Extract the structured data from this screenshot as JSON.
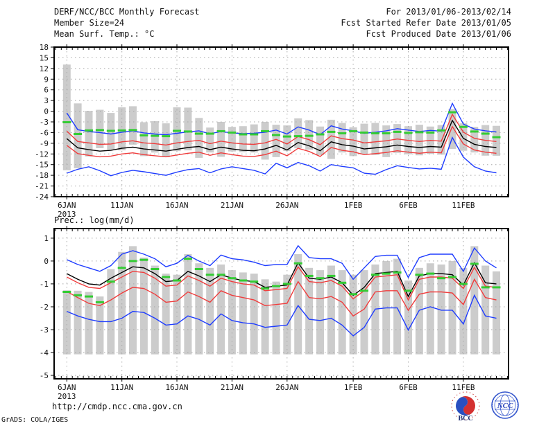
{
  "header": {
    "title": "DERF/NCC/BCC Monthly Forecast",
    "member_size": "Member Size=24",
    "temp_title": "Mean Surf. Temp.: °C",
    "for_range": "For 2013/01/06-2013/02/14",
    "refer_date": "Fcst Started Refer Date 2013/01/05",
    "produced_date": "Fcst Produced Date 2013/01/06"
  },
  "footer": {
    "url": "http://cmdp.ncc.cma.gov.cn",
    "credit": "GrADS: COLA/IGES",
    "logos": [
      {
        "label": "BCC"
      },
      {
        "label": "NCC"
      }
    ]
  },
  "colors": {
    "ensemble_extreme_blue": "#1e3cff",
    "spread_red": "#f03c3c",
    "mean_black": "#000000",
    "obs_green": "#33cc33",
    "bar_gray": "#cccccc",
    "grid": "#a8a8a8"
  },
  "x_axis": {
    "tick_labels": [
      "6JAN",
      "11JAN",
      "16JAN",
      "21JAN",
      "26JAN",
      "1FEB",
      "6FEB",
      "11FEB"
    ],
    "tick_days": [
      0,
      5,
      10,
      15,
      20,
      26,
      31,
      36
    ],
    "year_label": "2013",
    "n_days": 40
  },
  "chart_data": [
    {
      "type": "line",
      "name": "surface-temperature",
      "title": "Mean Surf. Temp.: °C",
      "ylim": [
        -24,
        18
      ],
      "yticks": [
        18,
        15,
        12,
        9,
        6,
        3,
        0,
        -3,
        -6,
        -9,
        -12,
        -15,
        -18,
        -21,
        -24
      ],
      "grid": true,
      "series": [
        {
          "name": "ensemble-max",
          "color": "#1e3cff",
          "values": [
            -0.5,
            -5.2,
            -5.7,
            -6.0,
            -6.4,
            -5.9,
            -5.5,
            -6.1,
            -6.4,
            -6.6,
            -6.2,
            -5.8,
            -5.5,
            -6.3,
            -5.7,
            -6.1,
            -6.3,
            -6.2,
            -5.9,
            -5.3,
            -6.4,
            -4.4,
            -5.3,
            -6.6,
            -4.1,
            -5.0,
            -5.5,
            -6.2,
            -5.9,
            -5.5,
            -4.9,
            -5.3,
            -5.7,
            -5.4,
            -5.6,
            2.2,
            -3.6,
            -5.0,
            -5.5,
            -5.8
          ]
        },
        {
          "name": "upper-spread",
          "color": "#f03c3c",
          "values": [
            -5.6,
            -8.5,
            -8.9,
            -9.3,
            -9.2,
            -8.6,
            -8.3,
            -8.9,
            -9.1,
            -9.5,
            -8.9,
            -8.5,
            -8.2,
            -9.1,
            -8.4,
            -8.9,
            -9.2,
            -9.3,
            -8.9,
            -7.9,
            -9.2,
            -7.1,
            -8.0,
            -9.4,
            -6.9,
            -7.7,
            -8.1,
            -8.9,
            -8.6,
            -8.3,
            -7.8,
            -8.2,
            -8.5,
            -8.2,
            -8.4,
            -0.9,
            -5.9,
            -7.6,
            -8.2,
            -8.5
          ]
        },
        {
          "name": "ensemble-mean",
          "color": "#000000",
          "values": [
            -7.7,
            -10.3,
            -10.8,
            -11.2,
            -11.0,
            -10.4,
            -10.1,
            -10.6,
            -10.9,
            -11.2,
            -10.7,
            -10.2,
            -9.9,
            -10.8,
            -10.1,
            -10.6,
            -11.0,
            -11.1,
            -10.6,
            -9.6,
            -10.9,
            -8.8,
            -9.7,
            -11.1,
            -8.6,
            -9.4,
            -9.8,
            -10.6,
            -10.3,
            -10.0,
            -9.5,
            -9.9,
            -10.2,
            -9.9,
            -10.1,
            -2.6,
            -7.6,
            -9.3,
            -9.9,
            -10.2
          ]
        },
        {
          "name": "lower-spread",
          "color": "#f03c3c",
          "values": [
            -9.6,
            -11.9,
            -12.4,
            -12.8,
            -12.6,
            -12.0,
            -11.7,
            -12.2,
            -12.5,
            -12.8,
            -12.3,
            -11.8,
            -11.5,
            -12.4,
            -11.7,
            -12.2,
            -12.6,
            -12.7,
            -12.2,
            -11.2,
            -12.5,
            -10.4,
            -11.3,
            -12.7,
            -10.2,
            -11.0,
            -11.4,
            -12.2,
            -11.9,
            -11.6,
            -11.1,
            -11.5,
            -11.8,
            -11.5,
            -11.7,
            -4.3,
            -9.2,
            -10.9,
            -11.5,
            -11.8
          ]
        },
        {
          "name": "ensemble-min",
          "color": "#1e3cff",
          "values": [
            -17.4,
            -16.3,
            -15.6,
            -16.7,
            -18.1,
            -17.2,
            -16.6,
            -17.0,
            -17.5,
            -18.0,
            -17.1,
            -16.4,
            -16.1,
            -17.3,
            -16.2,
            -15.6,
            -16.1,
            -16.6,
            -17.6,
            -14.6,
            -15.9,
            -14.4,
            -15.3,
            -16.8,
            -15.0,
            -15.5,
            -15.9,
            -17.4,
            -17.7,
            -16.4,
            -15.3,
            -15.8,
            -16.2,
            -16.0,
            -16.3,
            -7.4,
            -12.9,
            -15.6,
            -16.8,
            -17.3
          ]
        }
      ],
      "obs_dash": {
        "color": "#33cc33",
        "values": [
          -3.1,
          -6.4,
          -5.4,
          -5.3,
          -5.5,
          -5.4,
          -5.3,
          -6.8,
          -6.9,
          -7.0,
          -5.5,
          -5.7,
          -6.3,
          -6.3,
          -5.6,
          -6.0,
          -6.5,
          -6.5,
          -5.6,
          -6.7,
          -7.1,
          -7.0,
          -6.9,
          -6.5,
          -5.8,
          -6.2,
          -5.6,
          -6.0,
          -6.2,
          -6.2,
          -5.8,
          -6.1,
          -5.9,
          -6.0,
          -5.4,
          -0.3,
          -4.4,
          -5.7,
          -6.3,
          -7.3
        ]
      },
      "bars": {
        "color": "#cccccc",
        "top": [
          13.1,
          2.2,
          0.1,
          0.4,
          -0.5,
          1.1,
          1.4,
          -3.1,
          -2.8,
          -3.4,
          1.1,
          1.0,
          -1.9,
          -4.6,
          -3.0,
          -4.4,
          -4.2,
          -3.7,
          -3.0,
          -3.8,
          -4.0,
          -2.0,
          -2.5,
          -4.3,
          -2.4,
          -3.3,
          -4.5,
          -3.5,
          -3.3,
          -4.0,
          -3.6,
          -4.2,
          -3.8,
          -4.3,
          -3.9,
          0.6,
          -3.4,
          -4.4,
          -3.9,
          -4.1
        ],
        "bottom": [
          -16.6,
          -16.0,
          -12.7,
          -10.4,
          -10.8,
          -11.0,
          -9.4,
          -12.6,
          -11.6,
          -12.9,
          -11.2,
          -11.0,
          -13.1,
          -11.6,
          -12.8,
          -11.3,
          -11.5,
          -11.6,
          -13.6,
          -12.9,
          -11.2,
          -10.4,
          -10.8,
          -12.3,
          -13.4,
          -11.6,
          -12.6,
          -12.0,
          -12.3,
          -12.9,
          -11.7,
          -12.1,
          -12.4,
          -12.0,
          -12.2,
          -10.6,
          -11.1,
          -11.6,
          -12.5,
          -12.5
        ]
      }
    },
    {
      "type": "line",
      "name": "precipitation",
      "title": "Prec.: log(mm/d)",
      "ylim": [
        -5,
        1
      ],
      "yticks": [
        1,
        0,
        -1,
        -2,
        -3,
        -4,
        -5
      ],
      "grid": true,
      "series": [
        {
          "name": "ensemble-max",
          "color": "#1e3cff",
          "values": [
            0.06,
            -0.15,
            -0.3,
            -0.45,
            -0.2,
            0.3,
            0.45,
            0.3,
            0.1,
            -0.25,
            -0.1,
            0.25,
            0.0,
            -0.2,
            0.26,
            0.1,
            0.05,
            -0.05,
            -0.2,
            -0.15,
            -0.15,
            0.67,
            0.15,
            0.1,
            0.1,
            -0.1,
            -0.8,
            -0.3,
            0.2,
            0.25,
            0.25,
            -0.72,
            0.15,
            0.3,
            0.3,
            0.3,
            -0.45,
            0.57,
            0.0,
            -0.3
          ]
        },
        {
          "name": "upper-spread",
          "color": "#f03c3c",
          "values": [
            -0.7,
            -0.95,
            -1.15,
            -1.2,
            -0.95,
            -0.7,
            -0.45,
            -0.5,
            -0.75,
            -1.1,
            -1.05,
            -0.65,
            -0.85,
            -1.1,
            -0.75,
            -0.9,
            -1.0,
            -1.05,
            -1.3,
            -1.25,
            -1.2,
            -0.25,
            -0.9,
            -0.95,
            -0.85,
            -1.1,
            -1.65,
            -1.3,
            -0.7,
            -0.65,
            -0.6,
            -1.7,
            -0.8,
            -0.7,
            -0.7,
            -0.75,
            -1.2,
            -0.28,
            -1.1,
            -1.15
          ]
        },
        {
          "name": "ensemble-mean",
          "color": "#000000",
          "values": [
            -0.55,
            -0.8,
            -1.0,
            -1.05,
            -0.75,
            -0.5,
            -0.25,
            -0.3,
            -0.55,
            -0.9,
            -0.85,
            -0.45,
            -0.65,
            -0.9,
            -0.6,
            -0.75,
            -0.85,
            -0.9,
            -1.15,
            -1.1,
            -1.05,
            -0.08,
            -0.75,
            -0.8,
            -0.7,
            -0.95,
            -1.5,
            -1.15,
            -0.55,
            -0.5,
            -0.45,
            -1.55,
            -0.65,
            -0.55,
            -0.55,
            -0.6,
            -1.05,
            -0.08,
            -0.95,
            -1.0
          ]
        },
        {
          "name": "lower-spread",
          "color": "#f03c3c",
          "values": [
            -1.33,
            -1.6,
            -1.85,
            -1.95,
            -1.7,
            -1.4,
            -1.15,
            -1.2,
            -1.45,
            -1.8,
            -1.75,
            -1.35,
            -1.55,
            -1.8,
            -1.3,
            -1.5,
            -1.6,
            -1.7,
            -1.95,
            -1.9,
            -1.85,
            -0.9,
            -1.6,
            -1.65,
            -1.55,
            -1.8,
            -2.4,
            -2.1,
            -1.35,
            -1.3,
            -1.3,
            -2.16,
            -1.45,
            -1.35,
            -1.35,
            -1.4,
            -1.9,
            -0.8,
            -1.6,
            -1.7
          ]
        },
        {
          "name": "ensemble-min",
          "color": "#1e3cff",
          "values": [
            -2.2,
            -2.4,
            -2.55,
            -2.65,
            -2.65,
            -2.5,
            -2.2,
            -2.25,
            -2.5,
            -2.8,
            -2.75,
            -2.4,
            -2.55,
            -2.8,
            -2.31,
            -2.6,
            -2.7,
            -2.75,
            -2.9,
            -2.85,
            -2.8,
            -1.95,
            -2.55,
            -2.6,
            -2.5,
            -2.8,
            -3.27,
            -2.9,
            -2.1,
            -2.05,
            -2.05,
            -3.02,
            -2.15,
            -2.0,
            -2.15,
            -2.15,
            -2.75,
            -1.5,
            -2.4,
            -2.5
          ]
        }
      ],
      "obs_dash": {
        "color": "#33cc33",
        "values": [
          -1.35,
          -1.5,
          -1.55,
          -1.8,
          -0.9,
          -0.3,
          0.0,
          0.05,
          -0.35,
          -0.7,
          -0.85,
          0.1,
          -0.35,
          -0.6,
          -0.6,
          -0.75,
          -0.85,
          -0.9,
          -1.2,
          -1.1,
          -1.0,
          -0.1,
          -0.65,
          -0.75,
          -0.65,
          -0.95,
          -1.45,
          -1.3,
          -0.6,
          -0.55,
          -0.5,
          -1.3,
          -0.6,
          -0.55,
          -0.75,
          -0.7,
          -1.0,
          -0.12,
          -1.15,
          -1.15
        ]
      },
      "bars": {
        "color": "#cccccc",
        "bottom_constant": -4.08,
        "top": [
          -1.28,
          -1.3,
          -1.35,
          -1.55,
          -0.35,
          0.4,
          0.65,
          0.15,
          -0.2,
          -0.55,
          -0.6,
          0.3,
          -0.1,
          -0.3,
          -0.15,
          -0.4,
          -0.5,
          -0.55,
          -0.8,
          -0.9,
          -0.6,
          0.3,
          -0.3,
          -0.4,
          -0.2,
          -0.4,
          -0.6,
          -0.4,
          -0.15,
          0.0,
          0.1,
          -0.85,
          -0.3,
          -0.1,
          -0.15,
          0.0,
          -0.3,
          0.65,
          -0.2,
          -0.45
        ]
      }
    }
  ]
}
